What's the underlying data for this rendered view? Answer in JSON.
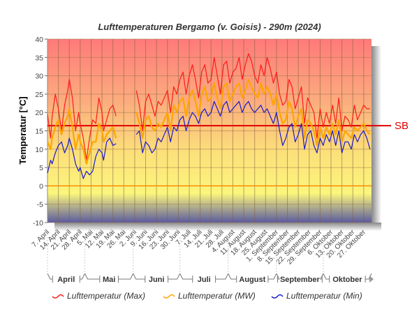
{
  "chart_data": {
    "type": "line",
    "title": "Lufttemperaturen Bergamo (v. Goisis) - 290m (2024)",
    "xlabel": "",
    "ylabel": "Temperatur [°C]",
    "ylim": [
      -10,
      40
    ],
    "yticks": [
      40,
      35,
      30,
      25,
      20,
      15,
      10,
      5,
      0,
      -5,
      -10
    ],
    "x_start_day": 0,
    "x_end_day": 208,
    "grid": true,
    "xtick_labels": [
      "7. April",
      "14. April",
      "21. April",
      "28. April",
      "5. Mai",
      "12. Mai",
      "19. Mai",
      "26. Mai",
      "2. Juni",
      "9. Juni",
      "16. Juni",
      "23. Juni",
      "30. Juni",
      "7. Juli",
      "14. Juli",
      "21. Juli",
      "28. Juli",
      "4. August",
      "11. August",
      "18. August",
      "25. August",
      "1. September",
      "8. September",
      "15. September",
      "22. September",
      "29. September",
      "6. Oktober",
      "13. Oktober",
      "20. Oktober",
      "27. Oktober"
    ],
    "months": [
      {
        "label": "April",
        "start_day": 0,
        "end_day": 24
      },
      {
        "label": "Mai",
        "start_day": 24,
        "end_day": 55
      },
      {
        "label": "Juni",
        "start_day": 55,
        "end_day": 85
      },
      {
        "label": "Juli",
        "start_day": 85,
        "end_day": 116
      },
      {
        "label": "August",
        "start_day": 116,
        "end_day": 147
      },
      {
        "label": "September",
        "start_day": 147,
        "end_day": 177
      },
      {
        "label": "Oktober",
        "start_day": 177,
        "end_day": 208
      }
    ],
    "reference_lines": [
      {
        "label": "SB",
        "value": 16.4,
        "color": "#e00000"
      },
      {
        "label": "",
        "value": 0,
        "color": "#ff8c00"
      }
    ],
    "series": [
      {
        "name": "Lufttemperatur (Max)",
        "color": "#ff1a1a",
        "days": [
          0,
          2,
          3,
          5,
          7,
          9,
          11,
          13,
          14,
          16,
          18,
          20,
          21,
          23,
          25,
          27,
          29,
          31,
          33,
          35,
          36,
          38,
          40,
          42,
          44,
          46,
          48,
          50,
          51,
          null,
          57,
          59,
          61,
          63,
          65,
          67,
          69,
          71,
          73,
          75,
          77,
          79,
          81,
          83,
          85,
          87,
          89,
          91,
          93,
          95,
          97,
          99,
          101,
          103,
          105,
          107,
          109,
          111,
          113,
          115,
          117,
          119,
          121,
          123,
          125,
          127,
          129,
          131,
          133,
          135,
          137,
          139,
          141,
          143,
          145,
          147,
          149,
          151,
          153,
          155,
          157,
          159,
          161,
          163,
          165,
          167,
          169,
          171,
          173,
          175,
          177,
          179,
          181,
          183,
          185,
          187,
          189,
          191,
          193,
          195,
          197,
          199,
          201,
          203,
          205,
          207
        ],
        "values": [
          19.5,
          13,
          19,
          25,
          21,
          15,
          22,
          26,
          29,
          24,
          15,
          20,
          17,
          13,
          7,
          13,
          18,
          17,
          24,
          20,
          15,
          18,
          21,
          22,
          19,
          null,
          null,
          null,
          null,
          null,
          26,
          22,
          15,
          23,
          25,
          22,
          19,
          23,
          22,
          24,
          26,
          20,
          27,
          25,
          29,
          31,
          25,
          30,
          33,
          29,
          24,
          31,
          33,
          28,
          29,
          35,
          30,
          25,
          33,
          34,
          28,
          31,
          32,
          35,
          29,
          33,
          36,
          34,
          30,
          28,
          33,
          30,
          35,
          32,
          28,
          31,
          25,
          22,
          23,
          29,
          27,
          21,
          24,
          27,
          17,
          24,
          22,
          20,
          13,
          21,
          16,
          20,
          17,
          22,
          17,
          24,
          15,
          19,
          18,
          16,
          22,
          18,
          20,
          22,
          21,
          21
        ]
      },
      {
        "name": "Lufttemperatur (MW)",
        "color": "#ffa500",
        "days": [
          0,
          2,
          3,
          5,
          7,
          9,
          11,
          13,
          14,
          16,
          18,
          20,
          21,
          23,
          25,
          27,
          29,
          31,
          33,
          35,
          36,
          38,
          40,
          42,
          44,
          46,
          48,
          50,
          51,
          null,
          57,
          59,
          61,
          63,
          65,
          67,
          69,
          71,
          73,
          75,
          77,
          79,
          81,
          83,
          85,
          87,
          89,
          91,
          93,
          95,
          97,
          99,
          101,
          103,
          105,
          107,
          109,
          111,
          113,
          115,
          117,
          119,
          121,
          123,
          125,
          127,
          129,
          131,
          133,
          135,
          137,
          139,
          141,
          143,
          145,
          147,
          149,
          151,
          153,
          155,
          157,
          159,
          161,
          163,
          165,
          167,
          169,
          171,
          173,
          175,
          177,
          179,
          181,
          183,
          185,
          187,
          189,
          191,
          193,
          195,
          197,
          199,
          201,
          203,
          205,
          207
        ],
        "values": [
          12,
          10,
          13,
          16,
          18,
          14,
          17,
          19,
          21,
          16,
          10,
          14,
          12,
          10,
          6,
          9,
          12,
          12,
          17,
          15,
          12,
          14,
          15,
          16,
          13,
          null,
          null,
          null,
          null,
          null,
          20,
          17,
          13,
          18,
          19,
          16,
          15,
          17,
          16,
          18,
          20,
          15,
          22,
          20,
          23,
          24,
          19,
          24,
          26,
          23,
          19,
          25,
          27,
          23,
          24,
          28,
          24,
          21,
          27,
          28,
          23,
          25,
          27,
          28,
          24,
          26,
          29,
          27,
          25,
          24,
          28,
          25,
          27,
          25,
          22,
          25,
          20,
          17,
          18,
          23,
          21,
          16,
          19,
          21,
          13,
          18,
          17,
          15,
          11,
          16,
          13,
          16,
          14,
          17,
          14,
          18,
          12,
          15,
          14,
          13,
          16,
          15,
          16,
          17,
          15,
          14
        ]
      },
      {
        "name": "Lufttemperatur (Min)",
        "color": "#1a1acc",
        "days": [
          0,
          2,
          3,
          5,
          7,
          9,
          11,
          13,
          14,
          16,
          18,
          20,
          21,
          23,
          25,
          27,
          29,
          31,
          33,
          35,
          36,
          38,
          40,
          42,
          44,
          46,
          48,
          50,
          51,
          null,
          57,
          59,
          61,
          63,
          65,
          67,
          69,
          71,
          73,
          75,
          77,
          79,
          81,
          83,
          85,
          87,
          89,
          91,
          93,
          95,
          97,
          99,
          101,
          103,
          105,
          107,
          109,
          111,
          113,
          115,
          117,
          119,
          121,
          123,
          125,
          127,
          129,
          131,
          133,
          135,
          137,
          139,
          141,
          143,
          145,
          147,
          149,
          151,
          153,
          155,
          157,
          159,
          161,
          163,
          165,
          167,
          169,
          171,
          173,
          175,
          177,
          179,
          181,
          183,
          185,
          187,
          189,
          191,
          193,
          195,
          197,
          199,
          201,
          203,
          205,
          207
        ],
        "values": [
          3.5,
          7,
          6,
          9,
          11,
          12,
          9,
          11,
          13,
          10,
          6,
          4,
          5,
          2,
          4,
          3,
          4,
          8,
          10,
          9,
          7,
          12,
          13,
          11,
          11.5,
          null,
          null,
          null,
          null,
          null,
          14,
          15,
          9,
          12,
          11,
          9,
          10,
          13,
          12,
          14,
          16,
          12,
          16,
          15,
          18,
          19,
          15,
          18,
          20,
          19,
          17,
          20,
          21,
          19,
          20,
          23,
          21,
          19,
          22,
          23,
          20,
          21,
          22,
          23,
          20,
          22,
          23,
          21,
          20,
          21,
          22,
          20,
          21,
          19,
          17,
          20,
          15,
          11,
          13,
          16,
          17,
          12,
          14,
          17,
          10,
          14,
          15,
          11,
          9,
          13,
          11,
          14,
          12,
          15,
          11,
          15,
          9,
          12,
          12,
          10,
          14,
          12,
          14,
          15,
          13,
          10
        ]
      }
    ],
    "legend_position": "bottom"
  }
}
